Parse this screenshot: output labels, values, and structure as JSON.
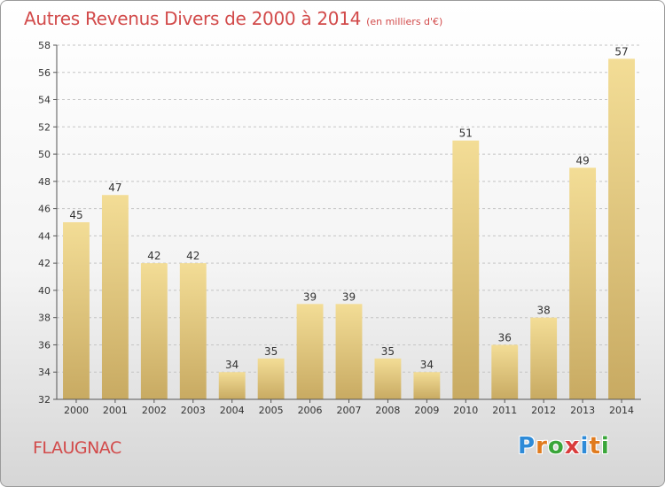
{
  "page": {
    "title": "Autres Revenus Divers de 2000 à 2014",
    "subtitle": "(en milliers d'€)",
    "commune": "FLAUGNAC",
    "brand": {
      "letters": [
        {
          "char": "P",
          "color": "#2e8bd8"
        },
        {
          "char": "r",
          "color": "#e07b1e"
        },
        {
          "char": "o",
          "color": "#3aa63a"
        },
        {
          "char": "x",
          "color": "#d93c3c"
        },
        {
          "char": "i",
          "color": "#2e8bd8"
        },
        {
          "char": "t",
          "color": "#e07b1e"
        },
        {
          "char": "i",
          "color": "#3aa63a"
        }
      ]
    }
  },
  "chart_data": {
    "type": "bar",
    "title": "Autres Revenus Divers de 2000 à 2014",
    "subtitle": "(en milliers d'€)",
    "categories": [
      "2000",
      "2001",
      "2002",
      "2003",
      "2004",
      "2005",
      "2006",
      "2007",
      "2008",
      "2009",
      "2010",
      "2011",
      "2012",
      "2013",
      "2014"
    ],
    "values": [
      45,
      47,
      42,
      42,
      34,
      35,
      39,
      39,
      35,
      34,
      51,
      36,
      38,
      49,
      57
    ],
    "ylim": [
      32,
      58
    ],
    "yticks": [
      32,
      34,
      36,
      38,
      40,
      42,
      44,
      46,
      48,
      50,
      52,
      54,
      56,
      58
    ],
    "grid": "horizontal",
    "xlabel": "",
    "ylabel": "",
    "colors": {
      "bar_top": "#f3dd96",
      "bar_bottom": "#c8aa62",
      "grid": "#c4c4c4",
      "axis": "#555555",
      "title": "#d24a4a"
    }
  }
}
